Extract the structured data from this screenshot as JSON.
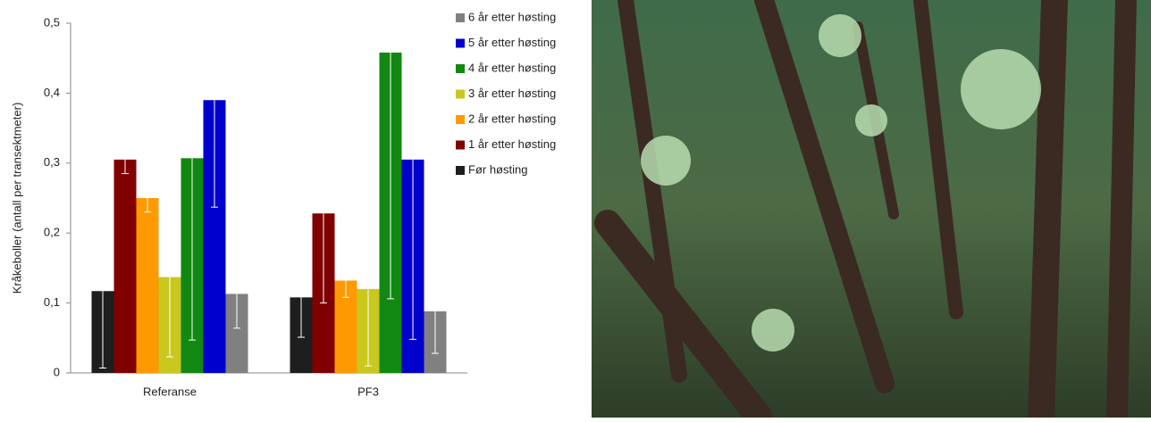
{
  "chart_data": {
    "type": "bar",
    "y_label": "Kråkeboller (antall per transektmeter)",
    "categories": [
      "Referanse",
      "PF3"
    ],
    "series": [
      {
        "name": "Før høsting",
        "color": "#1e1e1e",
        "values": [
          0.117,
          0.108
        ],
        "errors": [
          0.11,
          0.057
        ]
      },
      {
        "name": "1 år etter høsting",
        "color": "#800000",
        "values": [
          0.305,
          0.228
        ],
        "errors": [
          0.02,
          0.128
        ]
      },
      {
        "name": "2 år etter høsting",
        "color": "#ff9900",
        "values": [
          0.25,
          0.132
        ],
        "errors": [
          0.02,
          0.024
        ]
      },
      {
        "name": "3 år etter høsting",
        "color": "#c8c81e",
        "values": [
          0.137,
          0.12
        ],
        "errors": [
          0.114,
          0.11
        ]
      },
      {
        "name": "4 år etter høsting",
        "color": "#118811",
        "values": [
          0.307,
          0.458
        ],
        "errors": [
          0.26,
          0.352
        ]
      },
      {
        "name": "5 år etter høsting",
        "color": "#0000cc",
        "values": [
          0.39,
          0.305
        ],
        "errors": [
          0.153,
          0.257
        ]
      },
      {
        "name": "6 år etter høsting",
        "color": "#808080",
        "values": [
          0.113,
          0.088
        ],
        "errors": [
          0.049,
          0.06
        ]
      }
    ],
    "ylim": [
      0,
      0.5
    ],
    "yticks": [
      0,
      {
        "value": 0.1,
        "label": "0,1"
      },
      {
        "value": 0.2,
        "label": "0,2"
      },
      {
        "value": 0.3,
        "label": "0,3"
      },
      {
        "value": 0.4,
        "label": "0,4"
      },
      {
        "value": 0.5,
        "label": "0,5"
      }
    ]
  }
}
